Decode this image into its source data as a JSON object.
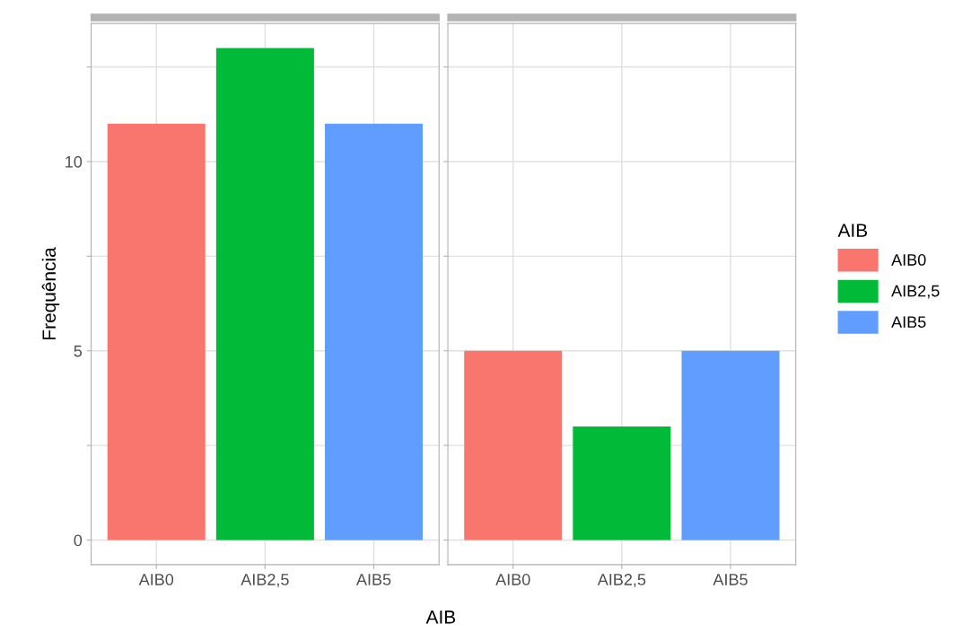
{
  "chart_data": [
    {
      "type": "bar",
      "ylabel": "Frequência",
      "xlabel": "AIB",
      "categories": [
        "AIB0",
        "AIB2,5",
        "AIB5"
      ],
      "series": [
        {
          "name": "AIB0",
          "color": "#f8766d",
          "values": [
            11,
            null,
            null
          ]
        },
        {
          "name": "AIB2,5",
          "color": "#00ba38",
          "values": [
            null,
            13,
            null
          ]
        },
        {
          "name": "AIB5",
          "color": "#619cff",
          "values": [
            null,
            null,
            11
          ]
        }
      ],
      "ylim": [
        -0.65,
        13.65
      ],
      "yticks": [
        0,
        {
          "value": 2.5,
          "label": null
        },
        5,
        {
          "value": 7.5,
          "label": null
        },
        10,
        {
          "value": 12.5,
          "label": null
        }
      ],
      "grid": true,
      "legend": "right",
      "legend_title": "AIB"
    },
    {
      "type": "bar",
      "categories": [
        "AIB0",
        "AIB2,5",
        "AIB5"
      ],
      "series": [
        {
          "color": "#f8766d",
          "values": [
            5,
            null,
            null
          ]
        },
        {
          "color": "#00ba38",
          "values": [
            null,
            3,
            null
          ]
        },
        {
          "color": "#619cff",
          "values": [
            null,
            null,
            5
          ]
        }
      ],
      "ylim": [
        -0.65,
        13.65
      ],
      "yticks": [
        0,
        {
          "value": 2.5,
          "label": null
        },
        5,
        {
          "value": 7.5,
          "label": null
        },
        10,
        {
          "value": 12.5,
          "label": null
        }
      ],
      "grid": true,
      "tick_labels": "x"
    }
  ]
}
